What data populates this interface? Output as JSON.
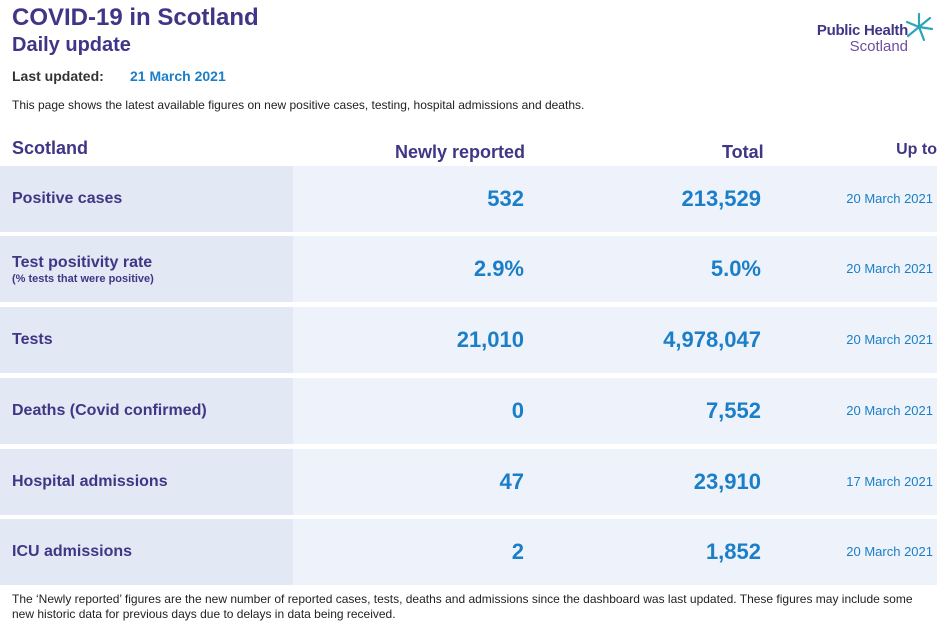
{
  "header": {
    "title": "COVID-19 in Scotland",
    "subtitle": "Daily update",
    "last_updated_label": "Last updated:",
    "last_updated_value": "21 March 2021",
    "intro": "This page shows the latest available figures on new positive cases, testing, hospital admissions and deaths."
  },
  "logo": {
    "line1": "Public Health",
    "line2": "Scotland",
    "icon": "star-burst-icon"
  },
  "table": {
    "headers": {
      "region": "Scotland",
      "new": "Newly reported",
      "total": "Total",
      "up_to": "Up to"
    },
    "rows": [
      {
        "label": "Positive cases",
        "sub": "",
        "new": "532",
        "total": "213,529",
        "date": "20 March 2021"
      },
      {
        "label": "Test positivity rate",
        "sub": "(% tests that were positive)",
        "new": "2.9%",
        "total": "5.0%",
        "date": "20 March 2021"
      },
      {
        "label": "Tests",
        "sub": "",
        "new": "21,010",
        "total": "4,978,047",
        "date": "20 March 2021"
      },
      {
        "label": "Deaths (Covid confirmed)",
        "sub": "",
        "new": "0",
        "total": "7,552",
        "date": "20 March 2021"
      },
      {
        "label": "Hospital admissions",
        "sub": "",
        "new": "47",
        "total": "23,910",
        "date": "17 March 2021"
      },
      {
        "label": "ICU admissions",
        "sub": "",
        "new": "2",
        "total": "1,852",
        "date": "20 March 2021"
      }
    ]
  },
  "footnote": "The ‘Newly reported’ figures are the new number of reported cases, tests, deaths and admissions since the dashboard was last updated. These figures may include some new historic data for previous days due to delays in data being received.",
  "colors": {
    "title": "#3f3685",
    "value": "#1a7fc8",
    "row_bg": "#eef2fa",
    "label_bg": "#e3e8f5",
    "logo_star": "#2aa6b8"
  }
}
